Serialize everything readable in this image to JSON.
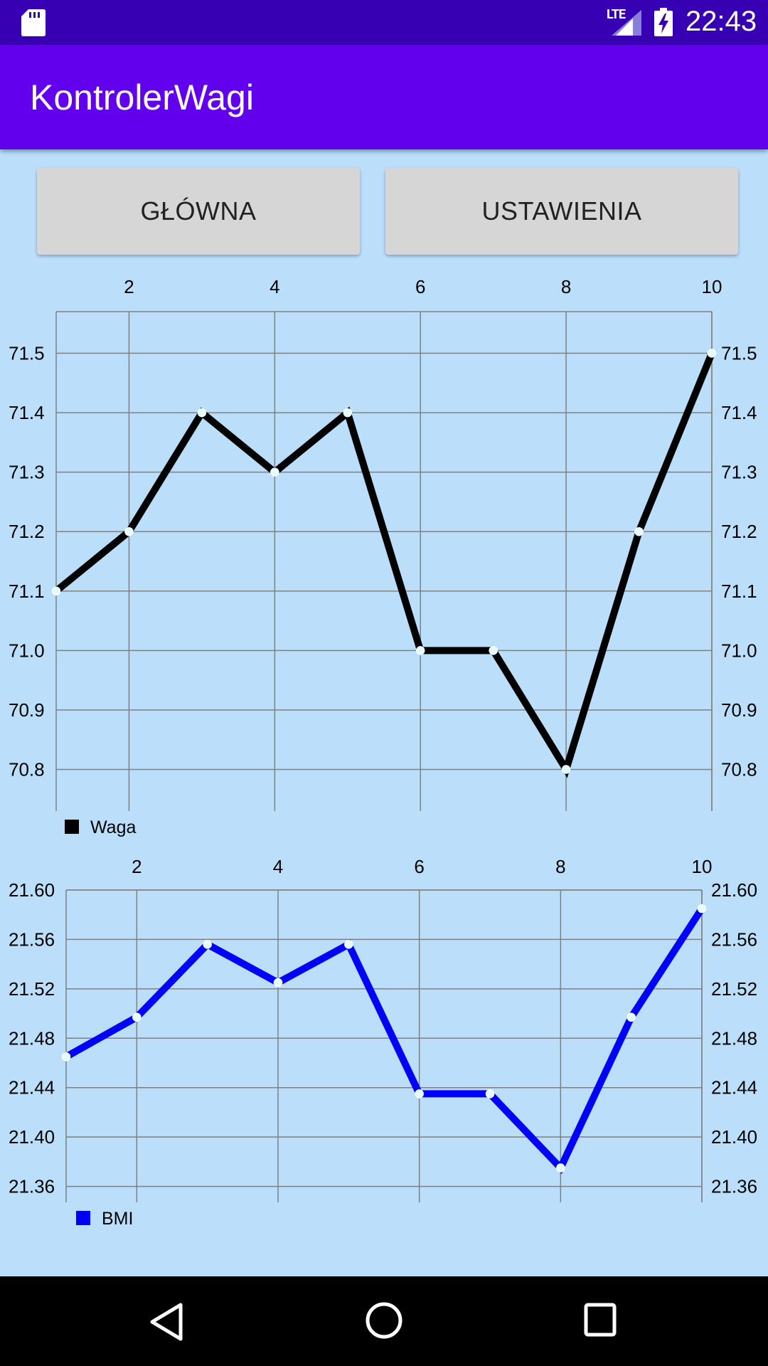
{
  "status_bar": {
    "network": "LTE",
    "time": "22:43",
    "icons": [
      "sd-card-icon",
      "signal-icon",
      "battery-charging-icon"
    ]
  },
  "app_bar": {
    "title": "KontrolerWagi"
  },
  "buttons": {
    "main_label": "GŁÓWNA",
    "settings_label": "USTAWIENIA"
  },
  "colors": {
    "background": "#bbdefb",
    "app_bar": "#6200ee",
    "status_bar": "#3700b3",
    "weight_series": "#000000",
    "bmi_series": "#0000ff",
    "point_marker": "#e0ffff"
  },
  "chart_data": [
    {
      "type": "line",
      "x": [
        1,
        2,
        3,
        4,
        5,
        6,
        7,
        8,
        9,
        10
      ],
      "series": [
        {
          "name": "Waga",
          "color": "#000000",
          "values": [
            71.1,
            71.2,
            71.4,
            71.3,
            71.4,
            71.0,
            71.0,
            70.8,
            71.2,
            71.5
          ]
        }
      ],
      "x_ticks": [
        "2",
        "4",
        "6",
        "8",
        "10"
      ],
      "y_ticks": [
        "70.8",
        "70.9",
        "71.0",
        "71.1",
        "71.2",
        "71.3",
        "71.4",
        "71.5"
      ],
      "xlim": [
        1,
        10
      ],
      "ylim": [
        70.73,
        71.57
      ],
      "y_tick_values": [
        70.8,
        70.9,
        71.0,
        71.1,
        71.2,
        71.3,
        71.4,
        71.5
      ],
      "x_tick_values": [
        2,
        4,
        6,
        8,
        10
      ],
      "x_axis_position": "top",
      "y_axis_position": "both",
      "grid": true,
      "legend": "bottom-left",
      "title": "",
      "xlabel": "",
      "ylabel": ""
    },
    {
      "type": "line",
      "x": [
        1,
        2,
        3,
        4,
        5,
        6,
        7,
        8,
        9,
        10
      ],
      "series": [
        {
          "name": "BMI",
          "color": "#0000ff",
          "values": [
            21.465,
            21.497,
            21.556,
            21.525,
            21.556,
            21.435,
            21.435,
            21.375,
            21.497,
            21.585
          ]
        }
      ],
      "x_ticks": [
        "2",
        "4",
        "6",
        "8",
        "10"
      ],
      "y_ticks": [
        "21.36",
        "21.40",
        "21.44",
        "21.48",
        "21.52",
        "21.56",
        "21.60"
      ],
      "xlim": [
        1,
        10
      ],
      "ylim": [
        21.354,
        21.6
      ],
      "y_tick_values": [
        21.36,
        21.4,
        21.44,
        21.48,
        21.52,
        21.56,
        21.6
      ],
      "x_tick_values": [
        2,
        4,
        6,
        8,
        10
      ],
      "x_axis_position": "top",
      "y_axis_position": "both",
      "grid": true,
      "legend": "bottom-left",
      "title": "",
      "xlabel": "",
      "ylabel": ""
    }
  ]
}
